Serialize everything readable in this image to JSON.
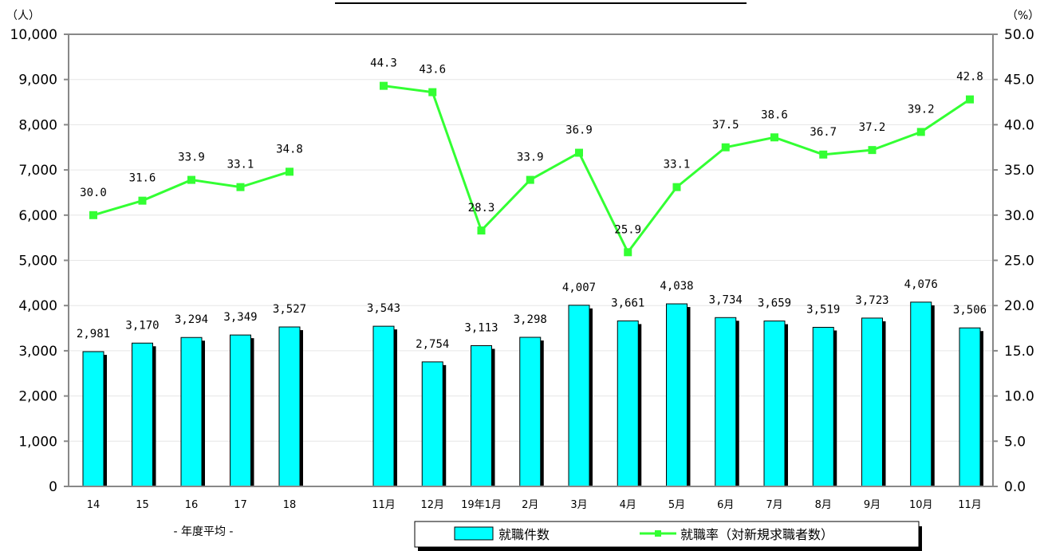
{
  "chart_data": {
    "type": "bar",
    "title": "",
    "categories": [
      "14",
      "15",
      "16",
      "17",
      "18",
      "11月",
      "12月",
      "19年1月",
      "2月",
      "3月",
      "4月",
      "5月",
      "6月",
      "7月",
      "8月",
      "9月",
      "10月",
      "11月"
    ],
    "category_group_caption": "- 年度平均 -",
    "y_left": {
      "unit": "（人）",
      "range": [
        0,
        10000
      ],
      "ticks": [
        "0",
        "1,000",
        "2,000",
        "3,000",
        "4,000",
        "5,000",
        "6,000",
        "7,000",
        "8,000",
        "9,000",
        "10,000"
      ]
    },
    "y_right": {
      "unit": "（%）",
      "range": [
        0,
        50
      ],
      "ticks": [
        "0.0",
        "5.0",
        "10.0",
        "15.0",
        "20.0",
        "25.0",
        "30.0",
        "35.0",
        "40.0",
        "45.0",
        "50.0"
      ]
    },
    "series": [
      {
        "name": "就職件数",
        "kind": "bar",
        "axis": "left",
        "color": "#00FFFF",
        "values": [
          2981,
          3170,
          3294,
          3349,
          3527,
          3543,
          2754,
          3113,
          3298,
          4007,
          3661,
          4038,
          3734,
          3659,
          3519,
          3723,
          4076,
          3506
        ],
        "labels": [
          "2,981",
          "3,170",
          "3,294",
          "3,349",
          "3,527",
          "3,543",
          "2,754",
          "3,113",
          "3,298",
          "4,007",
          "3,661",
          "4,038",
          "3,734",
          "3,659",
          "3,519",
          "3,723",
          "4,076",
          "3,506"
        ]
      },
      {
        "name": "就職率（対新規求職者数）",
        "kind": "line",
        "axis": "right",
        "color": "#33FF33",
        "values": [
          30.0,
          31.6,
          33.9,
          33.1,
          34.8,
          44.3,
          43.6,
          28.3,
          33.9,
          36.9,
          25.9,
          33.1,
          37.5,
          38.6,
          36.7,
          37.2,
          39.2,
          42.8
        ],
        "labels": [
          "30.0",
          "31.6",
          "33.9",
          "33.1",
          "34.8",
          "44.3",
          "43.6",
          "28.3",
          "33.9",
          "36.9",
          "25.9",
          "33.1",
          "37.5",
          "38.6",
          "36.7",
          "37.2",
          "39.2",
          "42.8"
        ]
      }
    ],
    "legend": {
      "placement": "bottom-right",
      "bar_label": "就職件数",
      "line_label": "就職率（対新規求職者数）"
    }
  }
}
